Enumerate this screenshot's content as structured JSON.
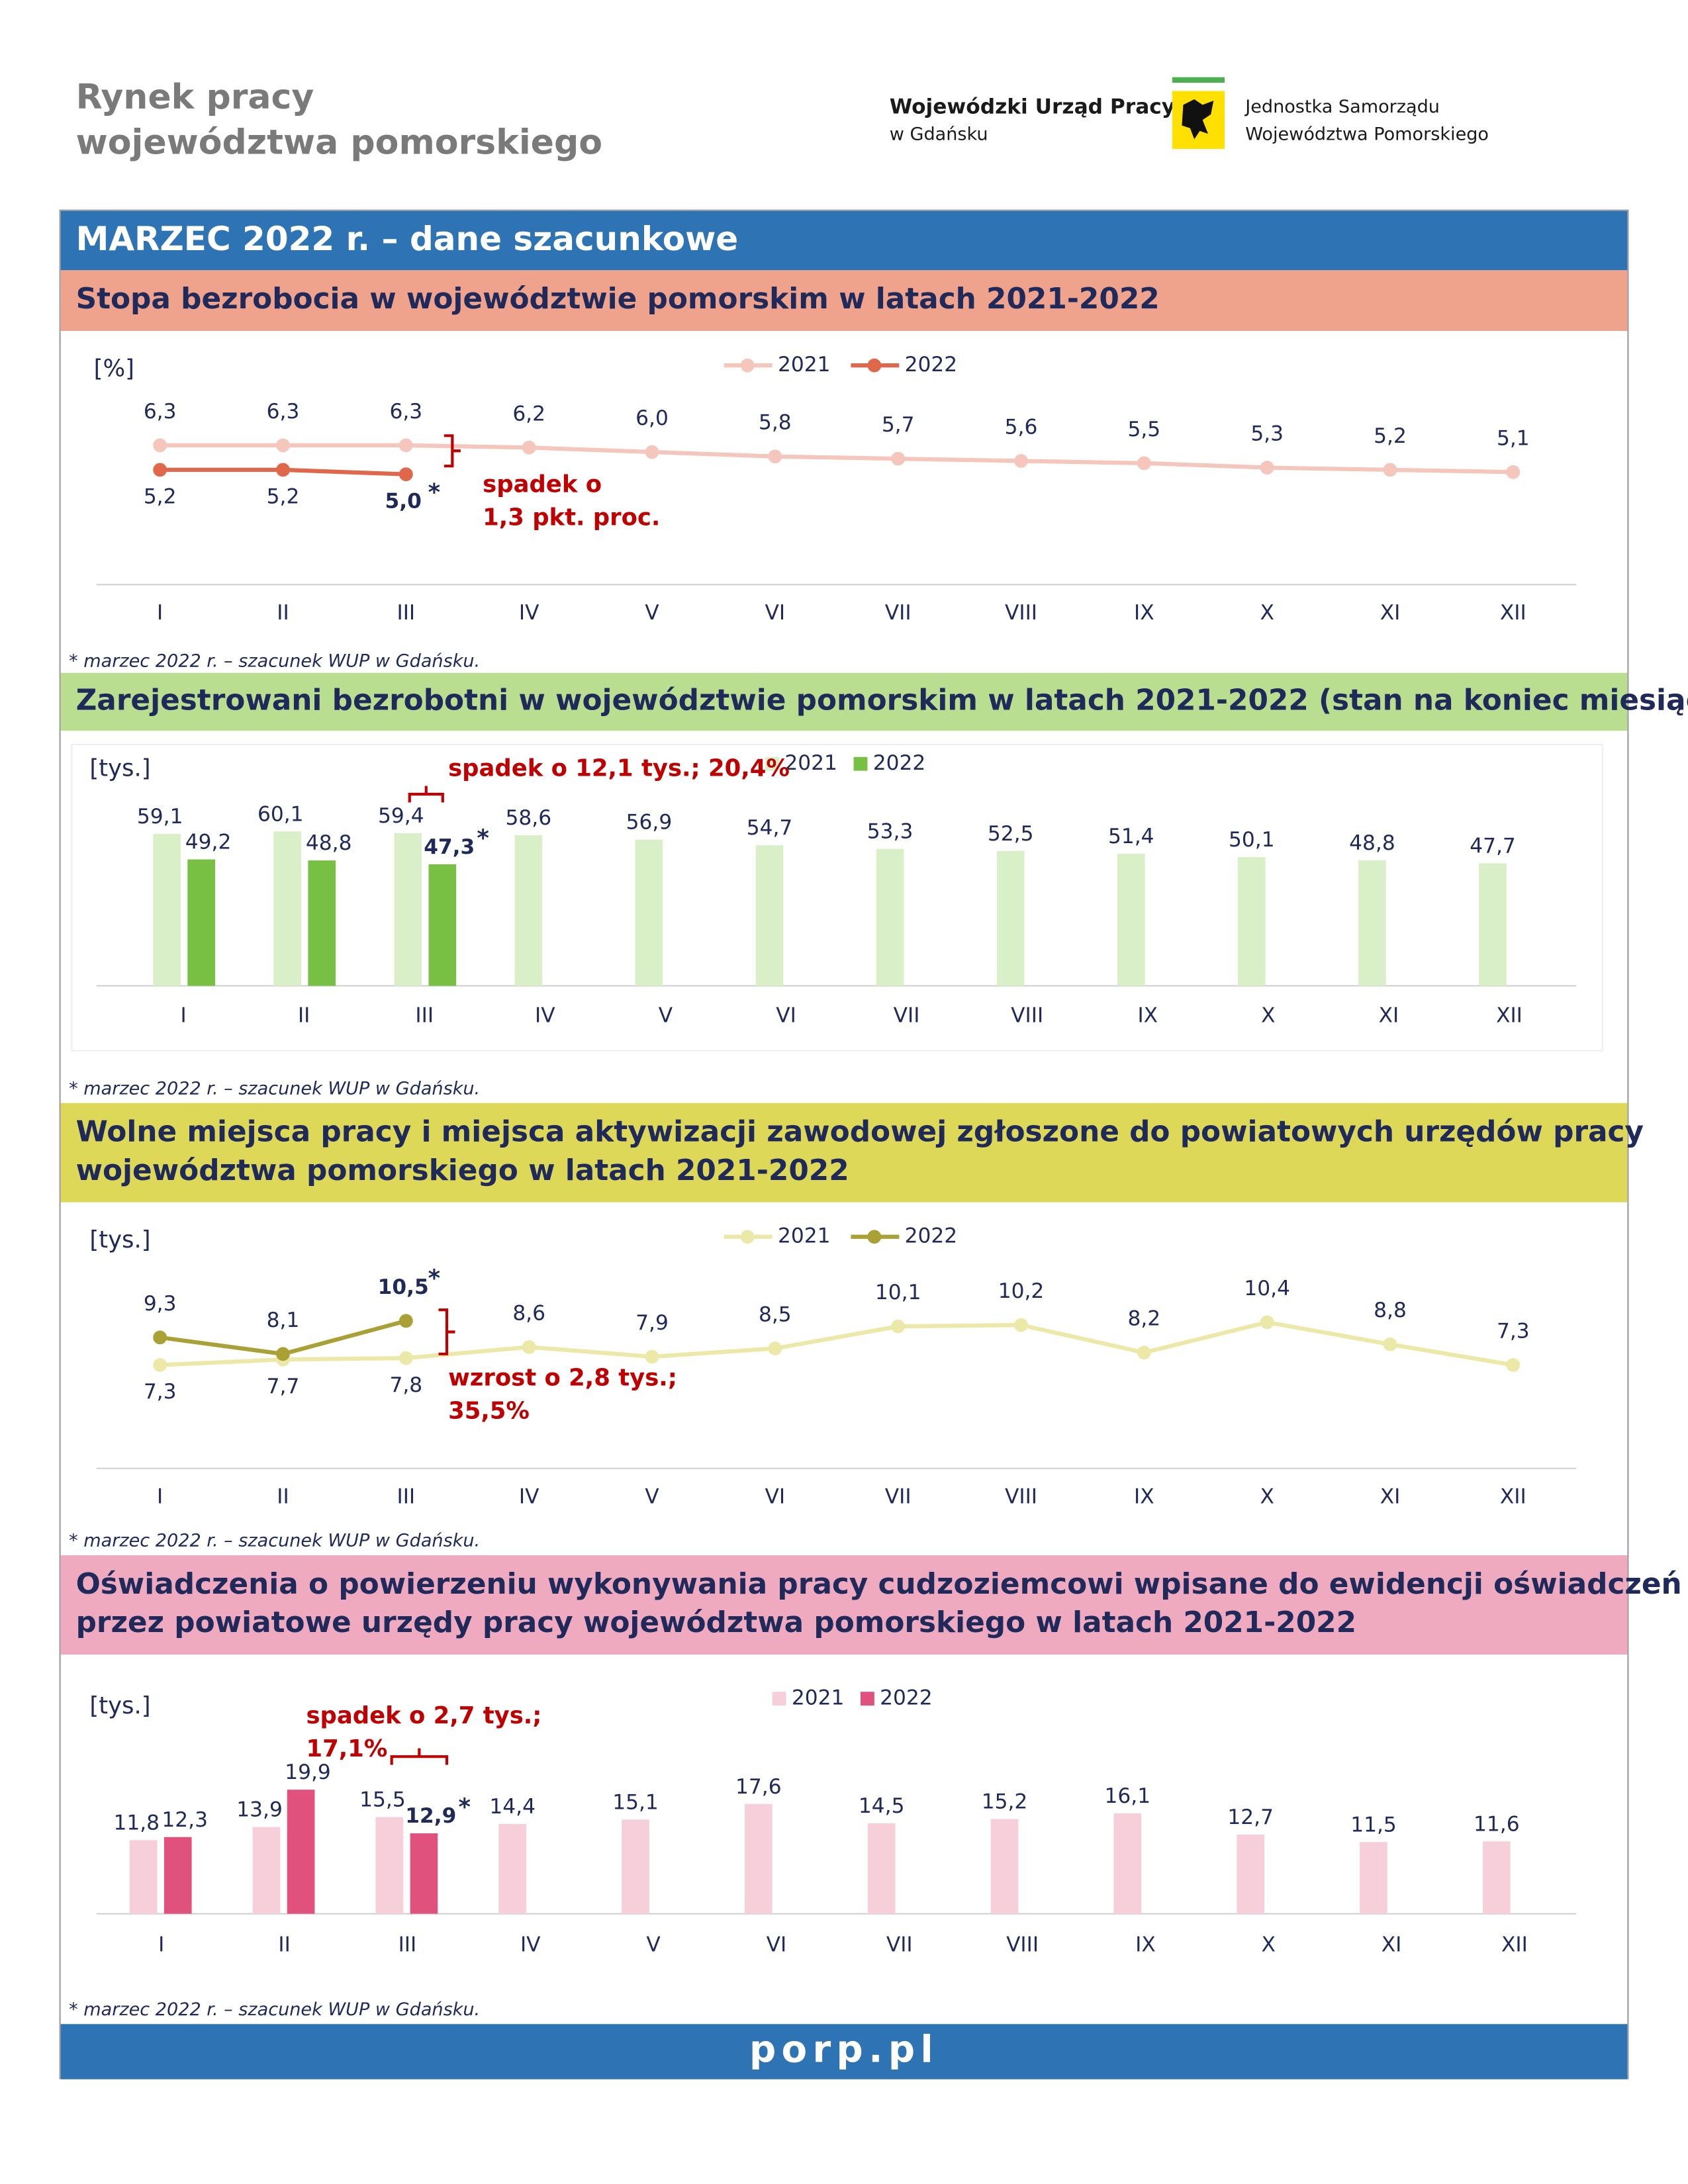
{
  "header": {
    "title": [
      "Rynek pracy",
      "województwa pomorskiego"
    ],
    "office": [
      "Wojewódzki Urząd Pracy",
      "w Gdańsku"
    ],
    "unit": [
      "Jednostka Samorządu",
      "Województwa Pomorskiego"
    ]
  },
  "banner": "MARZEC 2022 r. – dane szacunkowe",
  "estimate_marker": "*",
  "footer": "porp.pl",
  "chart_data": [
    {
      "type": "line",
      "title": [
        "Stopa bezrobocia w województwie pomorskim w latach 2021-2022"
      ],
      "unit_label": "[%]",
      "categories": [
        "I",
        "II",
        "III",
        "IV",
        "V",
        "VI",
        "VII",
        "VIII",
        "IX",
        "X",
        "XI",
        "XII"
      ],
      "series": [
        {
          "name": "2021",
          "color": "#f5c6bc",
          "values": [
            6.3,
            6.3,
            6.3,
            6.2,
            6.0,
            5.8,
            5.7,
            5.6,
            5.5,
            5.3,
            5.2,
            5.1
          ],
          "value_labels": [
            "6,3",
            "6,3",
            "6,3",
            "6,2",
            "6,0",
            "5,8",
            "5,7",
            "5,6",
            "5,5",
            "5,3",
            "5,2",
            "5,1"
          ]
        },
        {
          "name": "2022",
          "color": "#e0674a",
          "values": [
            5.2,
            5.2,
            5.0,
            null,
            null,
            null,
            null,
            null,
            null,
            null,
            null,
            null
          ],
          "value_labels": [
            "5,2",
            "5,2",
            "5,0",
            null,
            null,
            null,
            null,
            null,
            null,
            null,
            null,
            null
          ]
        }
      ],
      "annotation": [
        "spadek o",
        "1,3 pkt. proc."
      ],
      "footnote": "* marzec 2022 r. – szacunek WUP w Gdańsku."
    },
    {
      "type": "bar",
      "title": [
        "Zarejestrowani bezrobotni w województwie pomorskim w latach 2021-2022 (stan na koniec miesiąca)"
      ],
      "unit_label": "[tys.]",
      "categories": [
        "I",
        "II",
        "III",
        "IV",
        "V",
        "VI",
        "VII",
        "VIII",
        "IX",
        "X",
        "XI",
        "XII"
      ],
      "series": [
        {
          "name": "2021",
          "color": "#d9efc8",
          "values": [
            59.1,
            60.1,
            59.4,
            58.6,
            56.9,
            54.7,
            53.3,
            52.5,
            51.4,
            50.1,
            48.8,
            47.7
          ],
          "value_labels": [
            "59,1",
            "60,1",
            "59,4",
            "58,6",
            "56,9",
            "54,7",
            "53,3",
            "52,5",
            "51,4",
            "50,1",
            "48,8",
            "47,7"
          ]
        },
        {
          "name": "2022",
          "color": "#78c043",
          "values": [
            49.2,
            48.8,
            47.3,
            null,
            null,
            null,
            null,
            null,
            null,
            null,
            null,
            null
          ],
          "value_labels": [
            "49,2",
            "48,8",
            "47,3",
            null,
            null,
            null,
            null,
            null,
            null,
            null,
            null,
            null
          ]
        }
      ],
      "annotation": [
        "spadek o 12,1 tys.; 20,4%"
      ],
      "footnote": "* marzec 2022 r. – szacunek WUP w Gdańsku."
    },
    {
      "type": "line",
      "title": [
        "Wolne miejsca pracy i miejsca aktywizacji zawodowej zgłoszone do powiatowych urzędów pracy",
        "województwa pomorskiego w latach 2021-2022"
      ],
      "unit_label": "[tys.]",
      "categories": [
        "I",
        "II",
        "III",
        "IV",
        "V",
        "VI",
        "VII",
        "VIII",
        "IX",
        "X",
        "XI",
        "XII"
      ],
      "series": [
        {
          "name": "2021",
          "color": "#ece9a8",
          "values": [
            7.3,
            7.7,
            7.8,
            8.6,
            7.9,
            8.5,
            10.1,
            10.2,
            8.2,
            10.4,
            8.8,
            7.3
          ],
          "value_labels": [
            "7,3",
            "7,7",
            "7,8",
            "8,6",
            "7,9",
            "8,5",
            "10,1",
            "10,2",
            "8,2",
            "10,4",
            "8,8",
            "7,3"
          ]
        },
        {
          "name": "2022",
          "color": "#a9a136",
          "values": [
            9.3,
            8.1,
            10.5,
            null,
            null,
            null,
            null,
            null,
            null,
            null,
            null,
            null
          ],
          "value_labels": [
            "9,3",
            "8,1",
            "10,5",
            null,
            null,
            null,
            null,
            null,
            null,
            null,
            null,
            null
          ]
        }
      ],
      "annotation": [
        "wzrost o 2,8 tys.;",
        "35,5%"
      ],
      "footnote": "* marzec 2022 r. – szacunek WUP w Gdańsku."
    },
    {
      "type": "bar",
      "title": [
        "Oświadczenia o powierzeniu wykonywania pracy cudzoziemcowi wpisane do ewidencji oświadczeń",
        "przez powiatowe urzędy pracy województwa pomorskiego w latach 2021-2022"
      ],
      "unit_label": "[tys.]",
      "categories": [
        "I",
        "II",
        "III",
        "IV",
        "V",
        "VI",
        "VII",
        "VIII",
        "IX",
        "X",
        "XI",
        "XII"
      ],
      "series": [
        {
          "name": "2021",
          "color": "#f6cfdb",
          "values": [
            11.8,
            13.9,
            15.5,
            14.4,
            15.1,
            17.6,
            14.5,
            15.2,
            16.1,
            12.7,
            11.5,
            11.6
          ],
          "value_labels": [
            "11,8",
            "13,9",
            "15,5",
            "14,4",
            "15,1",
            "17,6",
            "14,5",
            "15,2",
            "16,1",
            "12,7",
            "11,5",
            "11,6"
          ]
        },
        {
          "name": "2022",
          "color": "#e0517e",
          "values": [
            12.3,
            19.9,
            12.9,
            null,
            null,
            null,
            null,
            null,
            null,
            null,
            null,
            null
          ],
          "value_labels": [
            "12,3",
            "19,9",
            "12,9",
            null,
            null,
            null,
            null,
            null,
            null,
            null,
            null,
            null
          ]
        }
      ],
      "annotation": [
        "spadek o 2,7 tys.;",
        "17,1%"
      ],
      "footnote": "* marzec 2022 r. – szacunek WUP w Gdańsku."
    }
  ]
}
